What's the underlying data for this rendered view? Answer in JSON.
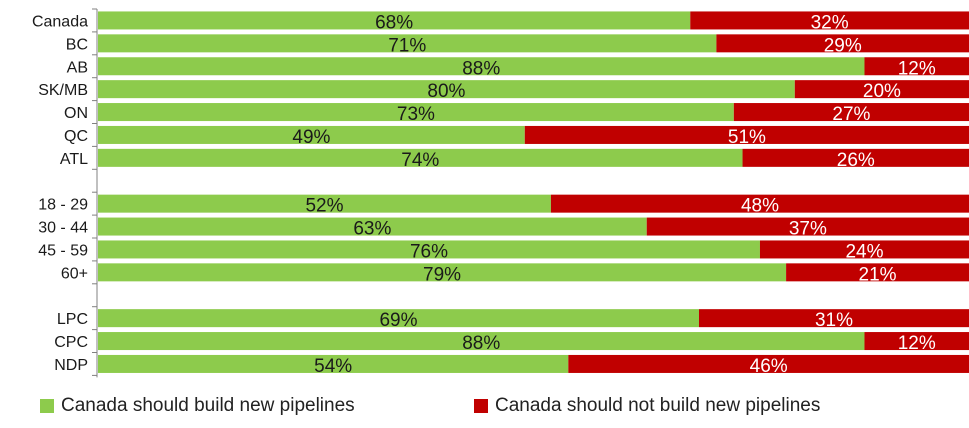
{
  "chart_data": {
    "type": "bar",
    "orientation": "horizontal",
    "stacked": true,
    "normalized_to_100": true,
    "categories": [
      "Canada",
      "BC",
      "AB",
      "SK/MB",
      "ON",
      "QC",
      "ATL",
      "",
      "18 - 29",
      "30 - 44",
      "45 - 59",
      "60+",
      "",
      "LPC",
      "CPC",
      "NDP"
    ],
    "series": [
      {
        "name": "Canada should build new pipelines",
        "color": "#8DCB4C",
        "values": [
          68,
          71,
          88,
          80,
          73,
          49,
          74,
          null,
          52,
          63,
          76,
          79,
          null,
          69,
          88,
          54
        ],
        "labels": [
          "68%",
          "71%",
          "88%",
          "80%",
          "73%",
          "49%",
          "74%",
          "",
          "52%",
          "63%",
          "76%",
          "79%",
          "",
          "69%",
          "88%",
          "54%"
        ]
      },
      {
        "name": "Canada should not build new pipelines",
        "color": "#C00000",
        "values": [
          32,
          29,
          12,
          20,
          27,
          51,
          26,
          null,
          48,
          37,
          24,
          21,
          null,
          31,
          12,
          46
        ],
        "labels": [
          "32%",
          "29%",
          "12%",
          "20%",
          "27%",
          "51%",
          "26%",
          "",
          "48%",
          "37%",
          "24%",
          "21%",
          "",
          "31%",
          "12%",
          "46%"
        ]
      }
    ],
    "xlim": [
      0,
      100
    ],
    "legend_position": "bottom",
    "grid": false,
    "colors": {
      "label_on_green": "#1a1a1a",
      "label_on_red": "#ffffff",
      "axis": "#808080"
    }
  }
}
